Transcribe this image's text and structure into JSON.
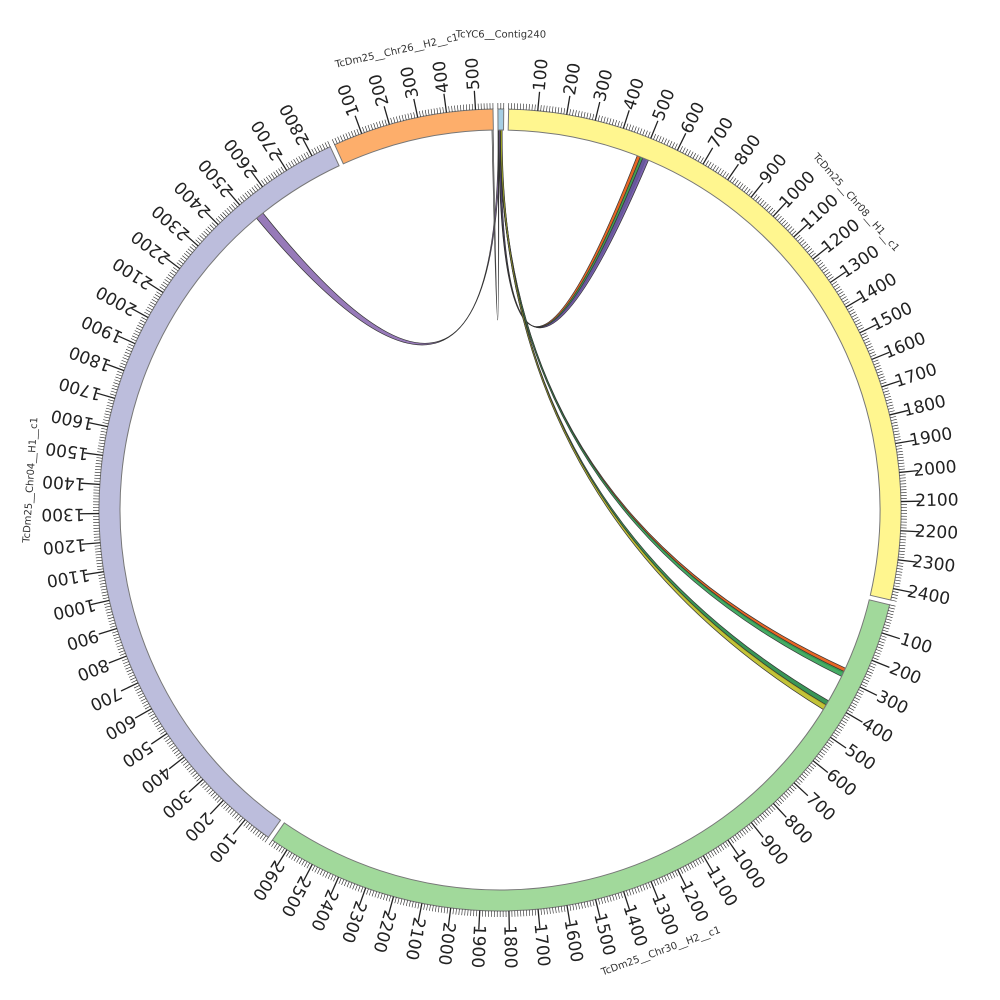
{
  "sequences": [
    {
      "id": "contig240",
      "name": "TcYC6__Contig240",
      "length": 20,
      "color": "#a6cee3",
      "label_every": 0
    },
    {
      "id": "chr08",
      "name": "TcDm25__Chr08__H1__c1",
      "length": 2440,
      "color": "#fff68f",
      "label_every": 100
    },
    {
      "id": "chr30",
      "name": "TcDm25__Chr30__H2__c1",
      "length": 2660,
      "color": "#a1d99b",
      "label_every": 100
    },
    {
      "id": "chr04",
      "name": "TcDm25__Chr04__H1__c1",
      "length": 2870,
      "color": "#bcbddc",
      "label_every": 100
    },
    {
      "id": "chr26",
      "name": "TcDm25__Chr26__H2__c1",
      "length": 560,
      "color": "#fdae6b",
      "label_every": 100
    }
  ],
  "links": [
    {
      "from": "contig240",
      "from_range": [
        2,
        8
      ],
      "to": "chr08",
      "to_range": [
        478,
        500
      ],
      "color": "#e6550d"
    },
    {
      "from": "contig240",
      "from_range": [
        3,
        9
      ],
      "to": "chr08",
      "to_range": [
        490,
        512
      ],
      "color": "#31a354"
    },
    {
      "from": "contig240",
      "from_range": [
        4,
        10
      ],
      "to": "chr08",
      "to_range": [
        500,
        522
      ],
      "color": "#6a51a3"
    },
    {
      "from": "contig240",
      "from_range": [
        6,
        12
      ],
      "to": "chr30",
      "to_range": [
        262,
        280
      ],
      "color": "#e6550d"
    },
    {
      "from": "contig240",
      "from_range": [
        7,
        13
      ],
      "to": "chr30",
      "to_range": [
        275,
        295
      ],
      "color": "#31a354"
    },
    {
      "from": "contig240",
      "from_range": [
        8,
        14
      ],
      "to": "chr30",
      "to_range": [
        395,
        415
      ],
      "color": "#238b45"
    },
    {
      "from": "contig240",
      "from_range": [
        9,
        15
      ],
      "to": "chr30",
      "to_range": [
        412,
        432
      ],
      "color": "#bcbd22"
    },
    {
      "from": "contig240",
      "from_range": [
        1,
        7
      ],
      "to": "chr04",
      "to_range": [
        2515,
        2545
      ],
      "color": "#8c6bb1"
    },
    {
      "from": "contig240",
      "from_range": [
        0,
        2
      ],
      "to": "chr26",
      "to_range": [
        555,
        559
      ],
      "color": "#ffffff"
    }
  ]
}
